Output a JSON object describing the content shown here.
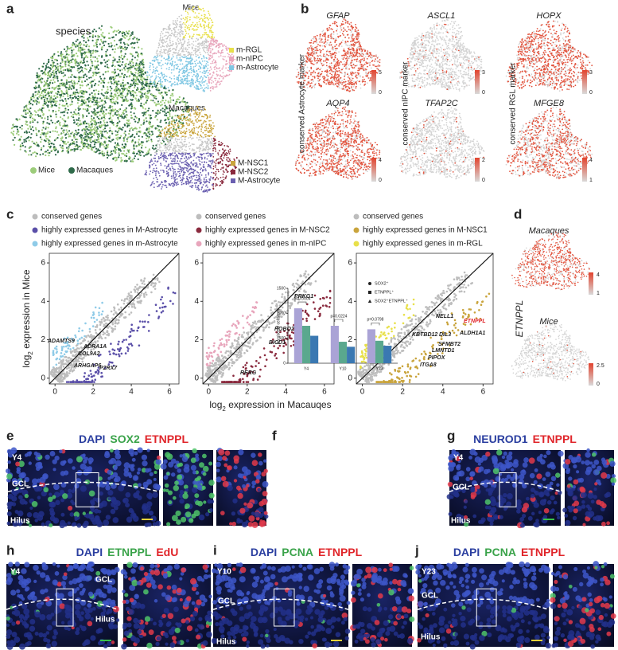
{
  "panels": {
    "a": {
      "label": "a",
      "species_title": "species",
      "species_legend": [
        "Mice",
        "Macaques"
      ],
      "species_colors": [
        "#9ccc7a",
        "#2f6a4a"
      ],
      "mice_title": "Mice",
      "mice_legend": [
        "m-RGL",
        "m-nIPC",
        "m-Astrocyte"
      ],
      "mice_colors": [
        "#e8e04a",
        "#e8a6bc",
        "#7fc7e3"
      ],
      "macaques_title": "Macaques",
      "macaques_legend": [
        "M-NSC1",
        "M-NSC2",
        "M-Astrocyte"
      ],
      "macaques_colors": [
        "#c9a43c",
        "#8a2a3e",
        "#6a5fb0"
      ]
    },
    "b": {
      "label": "b",
      "genes": [
        "GFAP",
        "ASCL1",
        "HOPX",
        "AQP4",
        "TFAP2C",
        "MFGE8"
      ],
      "row_labels": [
        "conserved Astrocyte marker",
        "conserved nIPC marker",
        "conserved RGL marker"
      ],
      "scales": [
        [
          5,
          0
        ],
        [
          3,
          0
        ],
        [
          3,
          0
        ],
        [
          4,
          0
        ],
        [
          2,
          0
        ],
        [
          4,
          1
        ]
      ]
    },
    "c": {
      "label": "c",
      "legends": [
        [
          "conserved genes",
          "highly expressed genes in M-Astrocyte",
          "highly expressed genes in m-Astrocyte"
        ],
        [
          "conserved genes",
          "highly expressed genes in M-NSC2",
          "highly expressed genes in m-nIPC"
        ],
        [
          "conserved genes",
          "highly expressed genes in M-NSC1",
          "highly expressed genes in m-RGL"
        ]
      ],
      "legend_colors": [
        [
          "#bdbdbd",
          "#5a4fa8",
          "#8fcbe8"
        ],
        [
          "#bdbdbd",
          "#8a2a3e",
          "#e8a6bc"
        ],
        [
          "#bdbdbd",
          "#c9a43c",
          "#e8e04a"
        ]
      ],
      "x_label": [
        "log",
        "2",
        " expression in Macauqes"
      ],
      "y_label": [
        "log",
        "2",
        " expression in Mice"
      ],
      "xticks": [
        0,
        2,
        4,
        6
      ],
      "yticks": [
        0,
        2,
        4,
        6
      ],
      "xlim": [
        -0.3,
        6.5
      ],
      "ylim": [
        -0.3,
        6.5
      ],
      "genes": [
        [
          "ADAMTS9",
          "ADRA1A",
          "COL9A2",
          "ARHGAP6",
          "P2RX7"
        ],
        [
          "PRKG1",
          "ROBO2",
          "BICD1",
          "RERG"
        ],
        [
          "NELL1",
          "ETNPPL",
          "ALDH1A1",
          "KBTBD12",
          "DIL3",
          "SFMBT2",
          "LMNTD1",
          "PIPOX",
          "ITGA8"
        ]
      ]
    },
    "d": {
      "label": "d",
      "gene": "ETNPPL",
      "titles": [
        "Macaques",
        "Mice"
      ],
      "scales": [
        [
          4,
          1
        ],
        [
          2.5,
          0
        ]
      ]
    },
    "e": {
      "label": "e",
      "title": [
        "DAPI",
        "SOX2",
        "ETNPPL"
      ],
      "title_colors": [
        "#2b3fa0",
        "#3aa34a",
        "#e0252a"
      ],
      "tags": [
        "Y4",
        "GCL",
        "Hilus"
      ]
    },
    "f": {
      "label": "f",
      "chart": {
        "type": "bar",
        "y_label": "Number of cells/mm",
        "categories": [
          "Y4",
          "Y10",
          "Y23"
        ],
        "series": [
          {
            "name": "SOX2⁺",
            "color": "#aaa3d6",
            "values": [
              1100,
              750,
              680
            ]
          },
          {
            "name": "ETNPPL⁺",
            "color": "#5aa88e",
            "values": [
              750,
              430,
              450
            ]
          },
          {
            "name": "SOX2⁺ETNPPL⁺",
            "color": "#3a78b2",
            "values": [
              550,
              330,
              350
            ]
          }
        ],
        "ylim": [
          0,
          1500
        ],
        "yticks": [
          0,
          500,
          1000,
          1500
        ],
        "pvalues": [
          "p=0.0004",
          "p=0.0224",
          "p=0.0798"
        ]
      }
    },
    "g": {
      "label": "g",
      "title": [
        "NEUROD1",
        "ETNPPL"
      ],
      "title_colors": [
        "#2b3fa0",
        "#e0252a"
      ],
      "tags": [
        "Y4",
        "GCL",
        "Hilus"
      ]
    },
    "h": {
      "label": "h",
      "title": [
        "DAPI",
        "ETNPPL",
        "EdU"
      ],
      "title_colors": [
        "#2b3fa0",
        "#3aa34a",
        "#e0252a"
      ],
      "tags": [
        "Y4",
        "GCL",
        "Hilus"
      ]
    },
    "i": {
      "label": "i",
      "title": [
        "DAPI",
        "PCNA",
        "ETNPPL"
      ],
      "title_colors": [
        "#2b3fa0",
        "#3aa34a",
        "#e0252a"
      ],
      "tags": [
        "Y10",
        "GCL",
        "Hilus"
      ]
    },
    "j": {
      "label": "j",
      "title": [
        "DAPI",
        "PCNA",
        "ETNPPL"
      ],
      "title_colors": [
        "#2b3fa0",
        "#3aa34a",
        "#e0252a"
      ],
      "tags": [
        "Y23",
        "GCL",
        "Hilus"
      ]
    }
  }
}
